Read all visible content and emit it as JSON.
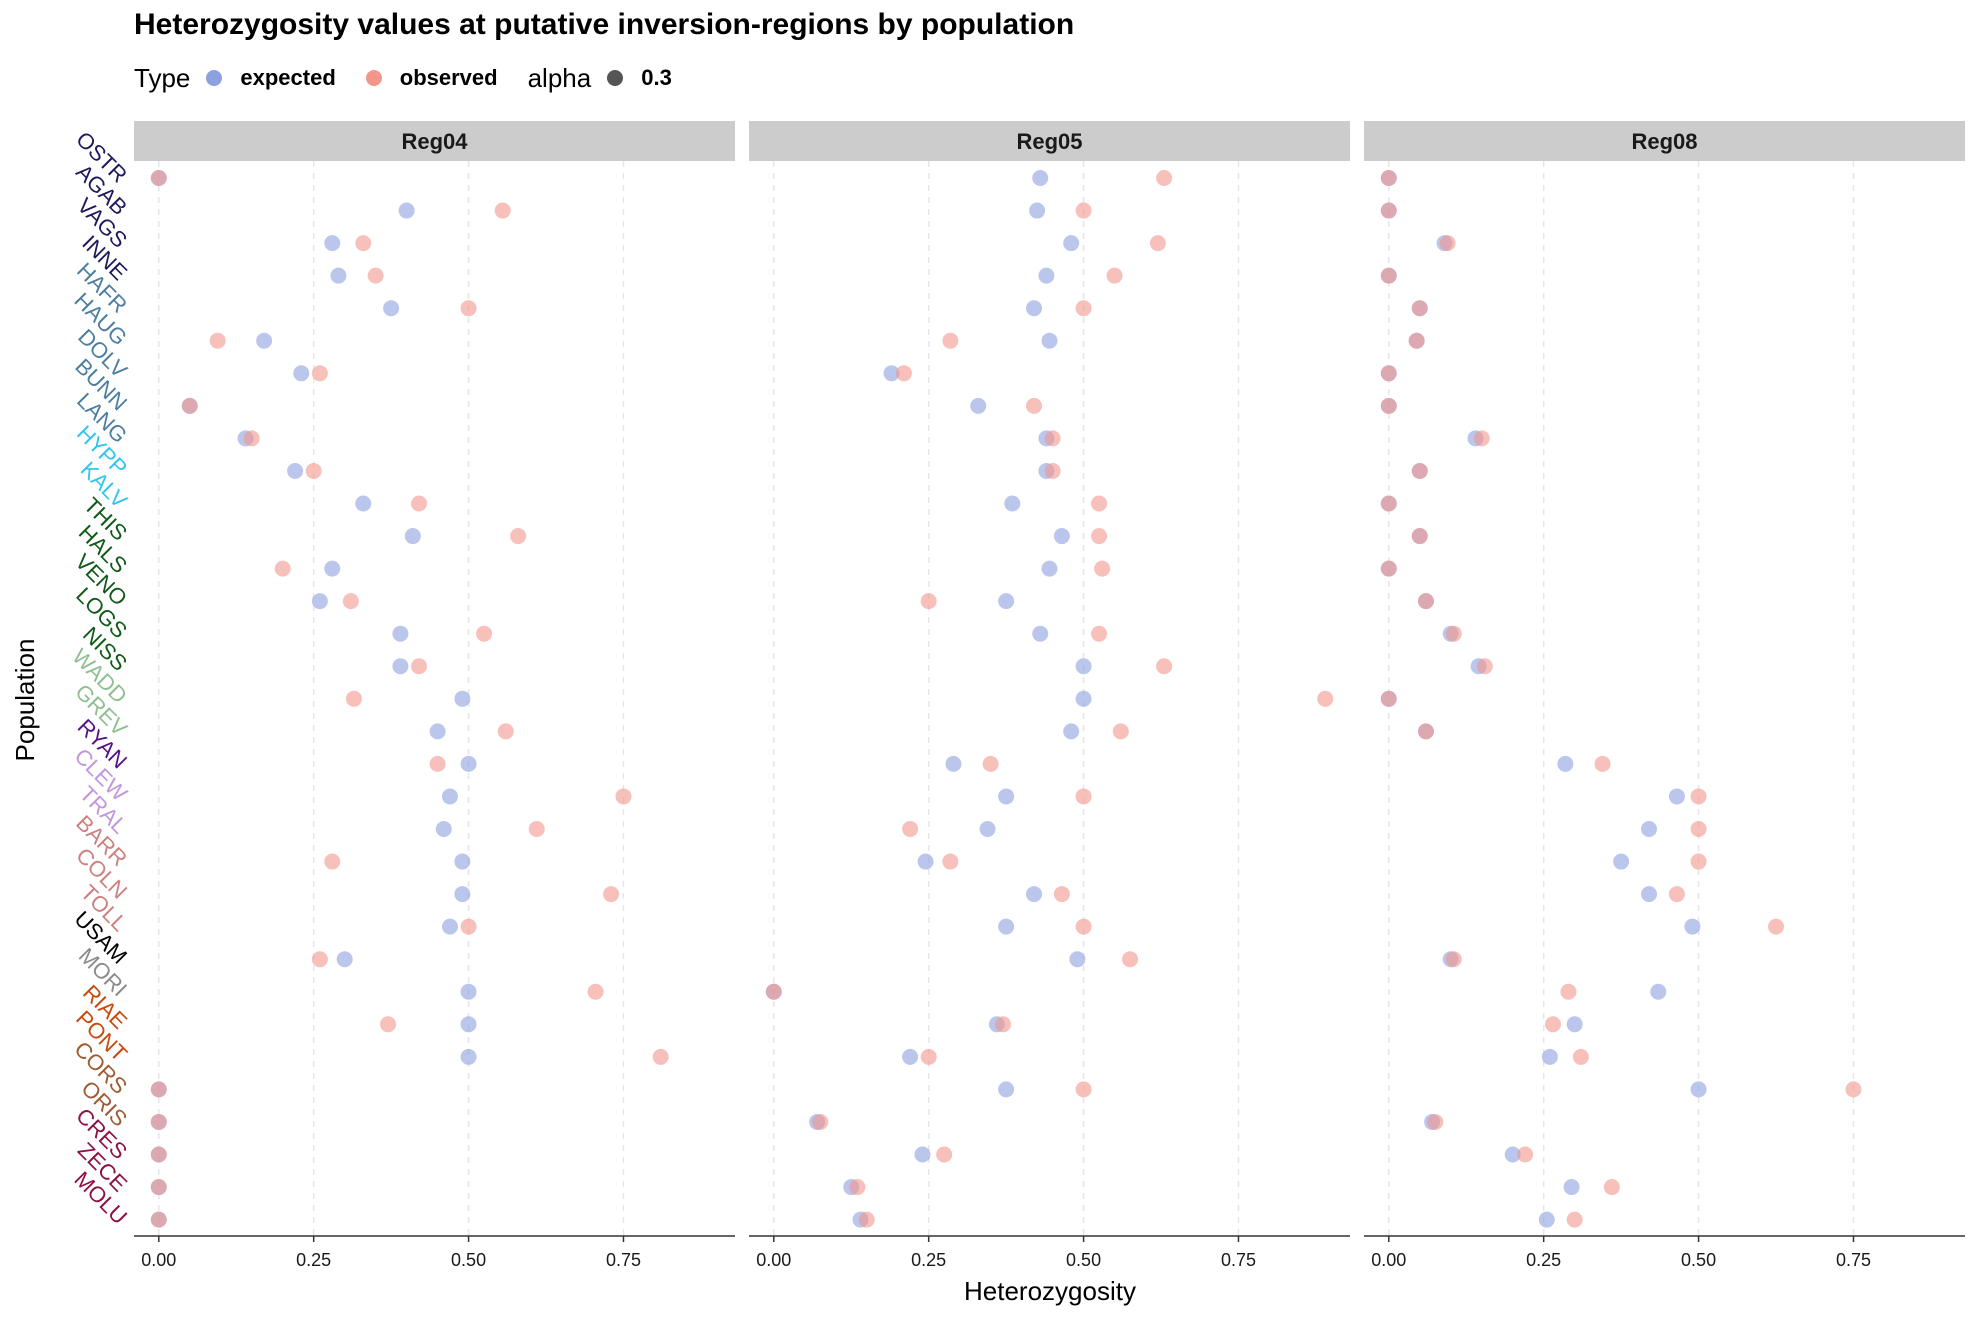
{
  "chart_data": {
    "type": "scatter",
    "title": "Heterozygosity values at putative inversion-regions by population",
    "xlabel": "Heterozygosity",
    "ylabel": "Population",
    "xlim": [
      -0.04,
      0.93
    ],
    "x_ticks": [
      "0.00",
      "0.25",
      "0.50",
      "0.75"
    ],
    "x_tick_values": [
      0,
      0.25,
      0.5,
      0.75
    ],
    "grid": "dashed vertical",
    "legend": {
      "position": "top-left",
      "type_title": "Type",
      "alpha_title": "alpha",
      "alpha_value": "0.3",
      "types": [
        {
          "label": "expected",
          "color": "#8da0e0"
        },
        {
          "label": "observed",
          "color": "#f2968c"
        }
      ],
      "alpha_color": "#555555"
    },
    "populations": [
      {
        "name": "OSTR",
        "color": "#1c1a5c"
      },
      {
        "name": "AGAB",
        "color": "#1c1a5c"
      },
      {
        "name": "VAGS",
        "color": "#1c1a5c"
      },
      {
        "name": "INNE",
        "color": "#1c1a5c"
      },
      {
        "name": "HAFR",
        "color": "#4c7ea0"
      },
      {
        "name": "HAUG",
        "color": "#4c7ea0"
      },
      {
        "name": "DOLV",
        "color": "#4c7ea0"
      },
      {
        "name": "BUNN",
        "color": "#4c7ea0"
      },
      {
        "name": "LANG",
        "color": "#4c7ea0"
      },
      {
        "name": "HYPP",
        "color": "#2fc6ee"
      },
      {
        "name": "KALV",
        "color": "#2fc6ee"
      },
      {
        "name": "THIS",
        "color": "#0e5a16"
      },
      {
        "name": "HALS",
        "color": "#0e5a16"
      },
      {
        "name": "VENO",
        "color": "#0e5a16"
      },
      {
        "name": "LOGS",
        "color": "#0e5a16"
      },
      {
        "name": "NISS",
        "color": "#0e5a16"
      },
      {
        "name": "WADD",
        "color": "#8fbf90"
      },
      {
        "name": "GREV",
        "color": "#8fbf90"
      },
      {
        "name": "RYAN",
        "color": "#55118a"
      },
      {
        "name": "CLEW",
        "color": "#c296dc"
      },
      {
        "name": "TRAL",
        "color": "#c296dc"
      },
      {
        "name": "BARR",
        "color": "#cc8080"
      },
      {
        "name": "COLN",
        "color": "#cc8080"
      },
      {
        "name": "TOLL",
        "color": "#cc8080"
      },
      {
        "name": "USAM",
        "color": "#000000"
      },
      {
        "name": "MORI",
        "color": "#8a8a8a"
      },
      {
        "name": "RIAE",
        "color": "#c64a0c"
      },
      {
        "name": "PONT",
        "color": "#c64a0c"
      },
      {
        "name": "CORS",
        "color": "#9e5a30"
      },
      {
        "name": "ORIS",
        "color": "#9e5a30"
      },
      {
        "name": "CRES",
        "color": "#8c1046"
      },
      {
        "name": "ZECE",
        "color": "#8c1046"
      },
      {
        "name": "MOLU",
        "color": "#8c1046"
      }
    ],
    "panels": [
      {
        "name": "Reg04",
        "expected": [
          0,
          0.4,
          0.28,
          0.29,
          0.375,
          0.17,
          0.23,
          0.05,
          0.14,
          0.22,
          0.33,
          0.41,
          0.28,
          0.26,
          0.39,
          0.39,
          0.49,
          0.45,
          0.5,
          0.47,
          0.46,
          0.49,
          0.49,
          0.47,
          0.3,
          0.5,
          0.5,
          0.5,
          0,
          0,
          0,
          0,
          0
        ],
        "observed": [
          0,
          0.555,
          0.33,
          0.35,
          0.5,
          0.095,
          0.26,
          0.05,
          0.15,
          0.25,
          0.42,
          0.58,
          0.2,
          0.31,
          0.525,
          0.42,
          0.315,
          0.56,
          0.45,
          0.75,
          0.61,
          0.28,
          0.73,
          0.5,
          0.26,
          0.705,
          0.37,
          0.81,
          0,
          0,
          0,
          0,
          0
        ]
      },
      {
        "name": "Reg05",
        "expected": [
          0.43,
          0.425,
          0.48,
          0.44,
          0.42,
          0.445,
          0.19,
          0.33,
          0.44,
          0.44,
          0.385,
          0.465,
          0.445,
          0.375,
          0.43,
          0.5,
          0.5,
          0.48,
          0.29,
          0.375,
          0.345,
          0.245,
          0.42,
          0.375,
          0.49,
          0,
          0.36,
          0.22,
          0.375,
          0.07,
          0.24,
          0.125,
          0.14
        ],
        "observed": [
          0.63,
          0.5,
          0.62,
          0.55,
          0.5,
          0.285,
          0.21,
          0.42,
          0.45,
          0.45,
          0.525,
          0.525,
          0.53,
          0.25,
          0.525,
          0.63,
          0.89,
          0.56,
          0.35,
          0.5,
          0.22,
          0.285,
          0.465,
          0.5,
          0.575,
          0,
          0.37,
          0.25,
          0.5,
          0.075,
          0.275,
          0.135,
          0.15
        ]
      },
      {
        "name": "Reg08",
        "expected": [
          0,
          0,
          0.09,
          0,
          0.05,
          0.045,
          0,
          0,
          0.14,
          0.05,
          0,
          0.05,
          0,
          0.06,
          0.1,
          0.145,
          0,
          0.06,
          0.285,
          0.465,
          0.42,
          0.375,
          0.42,
          0.49,
          0.1,
          0.435,
          0.3,
          0.26,
          0.5,
          0.07,
          0.2,
          0.295,
          0.255
        ],
        "observed": [
          0,
          0,
          0.095,
          0,
          0.05,
          0.045,
          0,
          0,
          0.15,
          0.05,
          0,
          0.05,
          0,
          0.06,
          0.105,
          0.155,
          0,
          0.06,
          0.345,
          0.5,
          0.5,
          0.5,
          0.465,
          0.625,
          0.105,
          0.29,
          0.265,
          0.31,
          0.75,
          0.075,
          0.22,
          0.36,
          0.3
        ]
      }
    ]
  }
}
